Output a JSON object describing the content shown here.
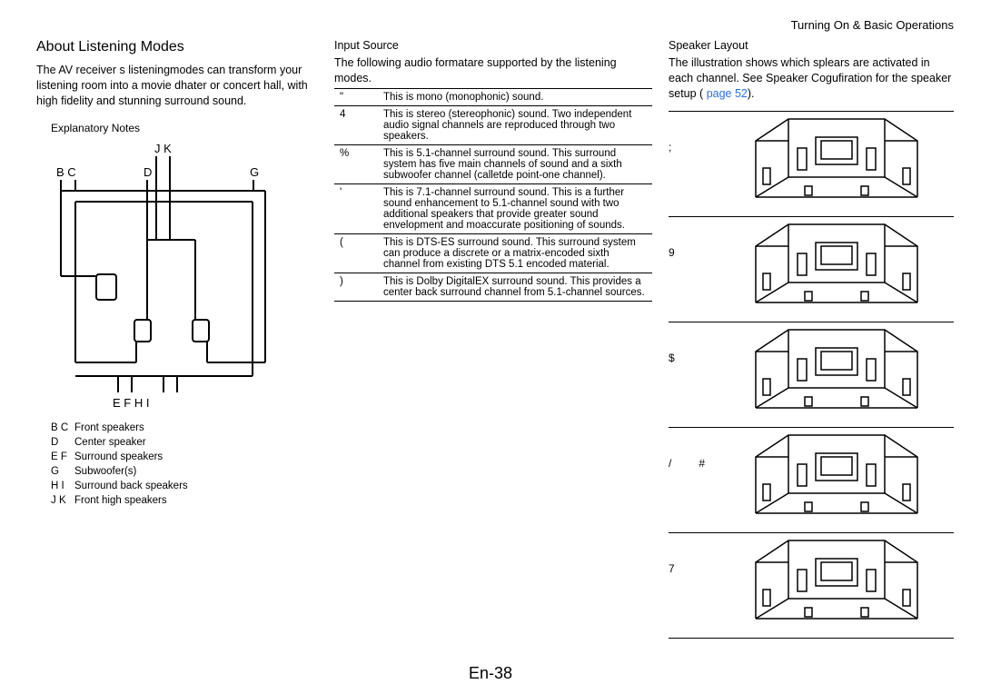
{
  "header": {
    "section": "Turning On & Basic Operations"
  },
  "col1": {
    "title": "About Listening Modes",
    "para": "The AV receiver s listeningmodes can transform your listening room into a movie dhater or concert hall, with high fidelity and stunning surround sound.",
    "notes_label": "Explanatory Notes",
    "diagram": {
      "top_labels": "J K",
      "row_labels_left": "B C",
      "row_labels_mid": "D",
      "row_labels_right": "G",
      "bottom_labels": "E F   H I",
      "stroke": "#000000",
      "stroke_width": 2
    },
    "legend": [
      {
        "letters": "B  C",
        "text": "Front speakers"
      },
      {
        "letters": "D",
        "text": "Center speaker"
      },
      {
        "letters": "E  F",
        "text": "Surround speakers"
      },
      {
        "letters": "G",
        "text": "Subwoofer(s)"
      },
      {
        "letters": "H  I",
        "text": "Surround back speakers"
      },
      {
        "letters": "J  K",
        "text": "Front high speakers"
      }
    ]
  },
  "col2": {
    "title": "Input Source",
    "para": "The following audio formatare supported by the listening modes.",
    "rows": [
      {
        "sym": "\"",
        "text": "This is mono (monophonic) sound."
      },
      {
        "sym": "4",
        "text": "This is stereo (stereophonic) sound. Two independent audio signal channels are reproduced through two speakers."
      },
      {
        "sym": "%",
        "text": "This is 5.1-channel surround sound. This surround system has five main channels of sound and a sixth subwoofer channel (calletde point-one channel)."
      },
      {
        "sym": "'",
        "text": "This is 7.1-channel surround sound. This is a further sound enhancement to 5.1-channel sound with two additional speakers that provide greater sound envelopment and moaccurate positioning of sounds."
      },
      {
        "sym": "(",
        "text": "This is DTS-ES surround sound. This surround system can produce a discrete or a matrix-encoded sixth channel from existing DTS 5.1 encoded material."
      },
      {
        "sym": ")",
        "text": "This is Dolby DigitalEX surround sound. This provides a center back surround channel from 5.1-channel sources."
      }
    ]
  },
  "col3": {
    "title": "Speaker Layout",
    "para_pre": "The illustration shows which splears are activated in each channel. See  Speaker Cogufiration  for the speaker setup (",
    "link": "page 52",
    "para_post": ").",
    "rows": [
      {
        "syms": [
          ";",
          ""
        ]
      },
      {
        "syms": [
          "9",
          ""
        ]
      },
      {
        "syms": [
          "$",
          ""
        ]
      },
      {
        "syms": [
          "/",
          "#"
        ]
      },
      {
        "syms": [
          "7",
          ""
        ]
      }
    ],
    "room": {
      "stroke": "#000000"
    }
  },
  "page_number": "En-38"
}
